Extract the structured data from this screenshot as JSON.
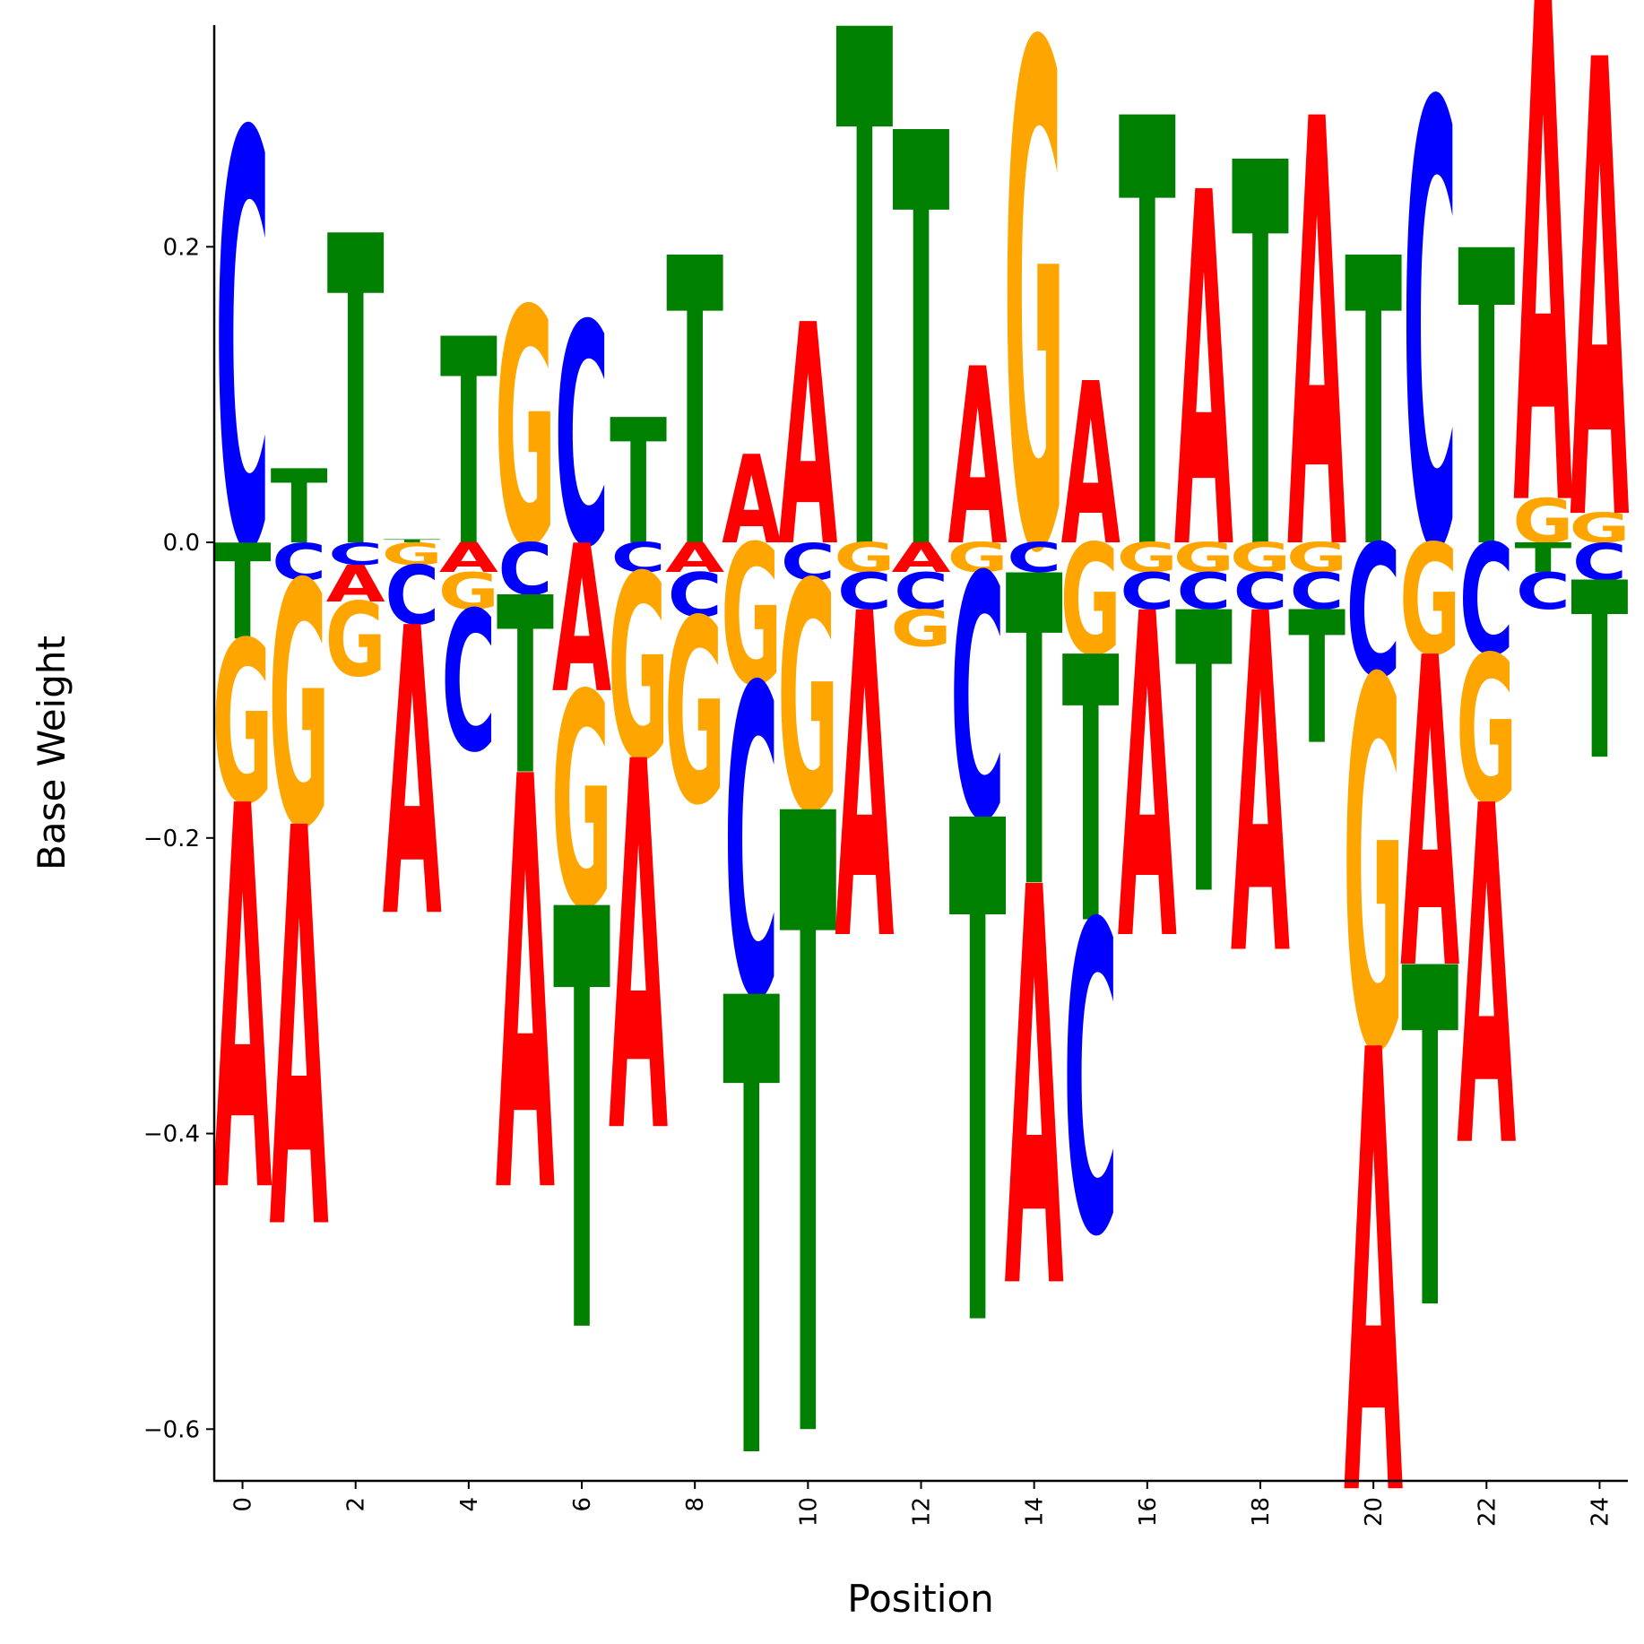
{
  "chart_data": {
    "type": "sequence-logo",
    "xlabel": "Position",
    "ylabel": "Base Weight",
    "xlim": [
      -0.5,
      24.5
    ],
    "ylim": [
      -0.635,
      0.35
    ],
    "x_ticks": [
      0,
      2,
      4,
      6,
      8,
      10,
      12,
      14,
      16,
      18,
      20,
      22,
      24
    ],
    "y_ticks": [
      -0.6,
      -0.4,
      -0.2,
      0.0,
      0.2
    ],
    "y_tick_labels": [
      "−0.6",
      "−0.4",
      "−0.2",
      "0.0",
      "0.2"
    ],
    "x_tick_labels": [
      "0",
      "2",
      "4",
      "6",
      "8",
      "10",
      "12",
      "14",
      "16",
      "18",
      "20",
      "22",
      "24"
    ],
    "colors": {
      "A": "#ff0000",
      "C": "#0000ff",
      "G": "#ffa500",
      "T": "#008000"
    },
    "positions": [
      {
        "x": 0,
        "A": -0.26,
        "C": 0.28,
        "G": -0.11,
        "T": -0.065
      },
      {
        "x": 1,
        "A": -0.27,
        "C": -0.025,
        "G": -0.165,
        "T": 0.05
      },
      {
        "x": 2,
        "A": -0.025,
        "C": -0.015,
        "G": -0.05,
        "T": 0.21
      },
      {
        "x": 3,
        "A": -0.195,
        "C": -0.04,
        "G": -0.015,
        "T": 0.002
      },
      {
        "x": 4,
        "A": -0.02,
        "C": -0.095,
        "G": -0.025,
        "T": 0.14
      },
      {
        "x": 5,
        "A": -0.28,
        "C": -0.035,
        "G": 0.16,
        "T": -0.12
      },
      {
        "x": 6,
        "A": -0.1,
        "C": 0.15,
        "G": -0.145,
        "T": -0.285
      },
      {
        "x": 7,
        "A": -0.25,
        "C": -0.02,
        "G": -0.125,
        "T": 0.085
      },
      {
        "x": 8,
        "A": -0.02,
        "C": -0.03,
        "G": -0.125,
        "T": 0.195
      },
      {
        "x": 9,
        "A": 0.06,
        "C": -0.21,
        "G": -0.095,
        "T": -0.31
      },
      {
        "x": 10,
        "A": 0.15,
        "C": -0.025,
        "G": -0.155,
        "T": -0.42
      },
      {
        "x": 11,
        "A": -0.22,
        "C": -0.025,
        "G": -0.02,
        "T": 0.35
      },
      {
        "x": 12,
        "A": -0.02,
        "C": -0.025,
        "G": -0.025,
        "T": 0.28
      },
      {
        "x": 13,
        "A": 0.12,
        "C": -0.165,
        "G": -0.02,
        "T": -0.34
      },
      {
        "x": 14,
        "A": -0.27,
        "C": -0.02,
        "G": 0.34,
        "T": -0.21
      },
      {
        "x": 15,
        "A": 0.11,
        "C": -0.21,
        "G": -0.075,
        "T": -0.18
      },
      {
        "x": 16,
        "A": -0.22,
        "C": -0.025,
        "G": -0.02,
        "T": 0.29
      },
      {
        "x": 17,
        "A": 0.24,
        "C": -0.025,
        "G": -0.02,
        "T": -0.19
      },
      {
        "x": 18,
        "A": -0.23,
        "C": -0.025,
        "G": -0.02,
        "T": 0.26
      },
      {
        "x": 19,
        "A": 0.29,
        "C": -0.025,
        "G": -0.02,
        "T": -0.09
      },
      {
        "x": 20,
        "A": -0.3,
        "C": -0.09,
        "G": -0.25,
        "T": 0.195
      },
      {
        "x": 21,
        "A": -0.21,
        "C": 0.3,
        "G": -0.075,
        "T": -0.23
      },
      {
        "x": 22,
        "A": -0.23,
        "C": -0.075,
        "G": -0.1,
        "T": 0.2
      },
      {
        "x": 23,
        "A": 0.34,
        "C": -0.025,
        "G": 0.03,
        "T": -0.02
      },
      {
        "x": 24,
        "A": 0.31,
        "C": -0.025,
        "G": 0.02,
        "T": -0.12
      }
    ]
  }
}
